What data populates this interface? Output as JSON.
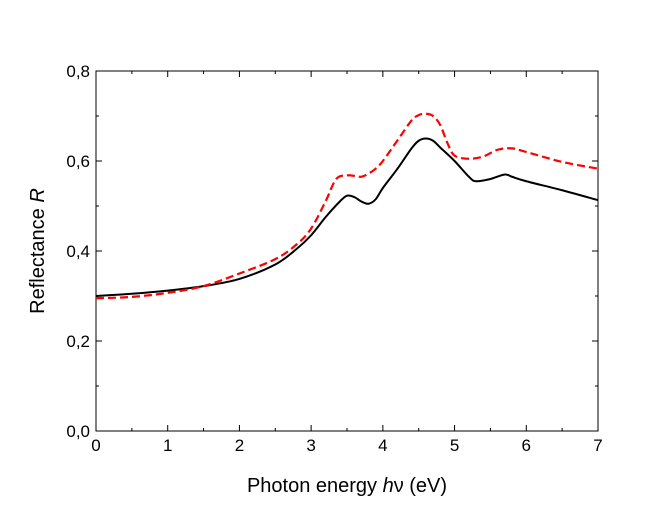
{
  "chart_data": {
    "type": "line",
    "title": "",
    "xlabel": {
      "prefix": "Photon energy ",
      "italic": "h",
      "symbol": "ν",
      "suffix": " (eV)"
    },
    "ylabel": {
      "prefix": "Reflectance ",
      "italic": "R"
    },
    "xlim": [
      0,
      7
    ],
    "ylim": [
      0,
      0.8
    ],
    "xticks": [
      0,
      1,
      2,
      3,
      4,
      5,
      6,
      7
    ],
    "xtick_labels": [
      "0",
      "1",
      "2",
      "3",
      "4",
      "5",
      "6",
      "7"
    ],
    "yticks": [
      0,
      0.2,
      0.4,
      0.6,
      0.8
    ],
    "ytick_labels": [
      "0,0",
      "0,2",
      "0,4",
      "0,6",
      "0,8"
    ],
    "grid": false,
    "series": [
      {
        "name": "solid",
        "color": "#000000",
        "style": "solid",
        "x": [
          0,
          0.5,
          1,
          1.5,
          2,
          2.5,
          2.8,
          3,
          3.2,
          3.4,
          3.5,
          3.6,
          3.7,
          3.8,
          3.9,
          4,
          4.2,
          4.4,
          4.5,
          4.6,
          4.7,
          4.8,
          5,
          5.2,
          5.3,
          5.5,
          5.7,
          5.8,
          6,
          6.5,
          7
        ],
        "y": [
          0.3,
          0.305,
          0.312,
          0.322,
          0.338,
          0.37,
          0.405,
          0.435,
          0.475,
          0.51,
          0.523,
          0.52,
          0.51,
          0.505,
          0.515,
          0.54,
          0.582,
          0.628,
          0.645,
          0.65,
          0.645,
          0.63,
          0.6,
          0.565,
          0.555,
          0.56,
          0.57,
          0.565,
          0.555,
          0.535,
          0.513
        ]
      },
      {
        "name": "dashed",
        "color": "#ff0000",
        "style": "dashed",
        "x": [
          0,
          0.5,
          1,
          1.5,
          2,
          2.5,
          2.8,
          3,
          3.2,
          3.35,
          3.5,
          3.6,
          3.7,
          3.8,
          3.9,
          4,
          4.2,
          4.4,
          4.5,
          4.6,
          4.7,
          4.8,
          4.9,
          5,
          5.2,
          5.4,
          5.6,
          5.8,
          6,
          6.5,
          7
        ],
        "y": [
          0.295,
          0.298,
          0.307,
          0.322,
          0.35,
          0.382,
          0.415,
          0.45,
          0.51,
          0.56,
          0.568,
          0.567,
          0.565,
          0.572,
          0.583,
          0.6,
          0.645,
          0.69,
          0.702,
          0.705,
          0.7,
          0.68,
          0.64,
          0.612,
          0.605,
          0.61,
          0.625,
          0.628,
          0.62,
          0.598,
          0.583
        ]
      }
    ]
  }
}
